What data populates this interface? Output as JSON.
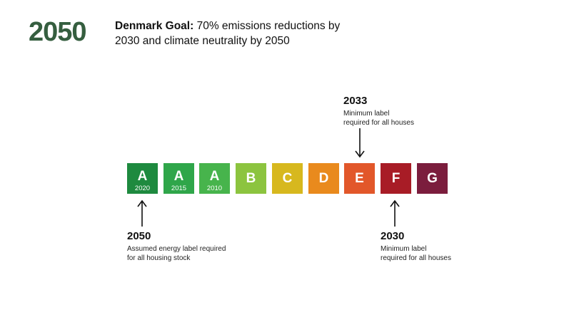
{
  "header": {
    "big_year": "2050",
    "goal_label": "Denmark Goal:",
    "goal_text": " 70% emissions reductions by 2030 and climate neutrality by 2050"
  },
  "energy_labels": [
    {
      "letter": "A",
      "year": "2020",
      "color": "#1e8a3f"
    },
    {
      "letter": "A",
      "year": "2015",
      "color": "#2fa64a"
    },
    {
      "letter": "A",
      "year": "2010",
      "color": "#47b44c"
    },
    {
      "letter": "B",
      "year": "",
      "color": "#8cc43f"
    },
    {
      "letter": "C",
      "year": "",
      "color": "#d7b81e"
    },
    {
      "letter": "D",
      "year": "",
      "color": "#e98a1d"
    },
    {
      "letter": "E",
      "year": "",
      "color": "#e2572a"
    },
    {
      "letter": "F",
      "year": "",
      "color": "#a81c26"
    },
    {
      "letter": "G",
      "year": "",
      "color": "#7b1d3d"
    }
  ],
  "annotations": {
    "top_2033": {
      "year": "2033",
      "line1": "Minimum label",
      "line2": "required for all houses",
      "arrow": "down-arrow"
    },
    "bottom_2050": {
      "year": "2050",
      "line1": "Assumed energy label required",
      "line2": "for all housing stock",
      "arrow": "up-arrow"
    },
    "bottom_2030": {
      "year": "2030",
      "line1": "Minimum label",
      "line2": "required for all houses",
      "arrow": "up-arrow"
    }
  },
  "colors": {
    "heading_green": "#355e3f",
    "text": "#111111",
    "arrow": "#111111"
  }
}
